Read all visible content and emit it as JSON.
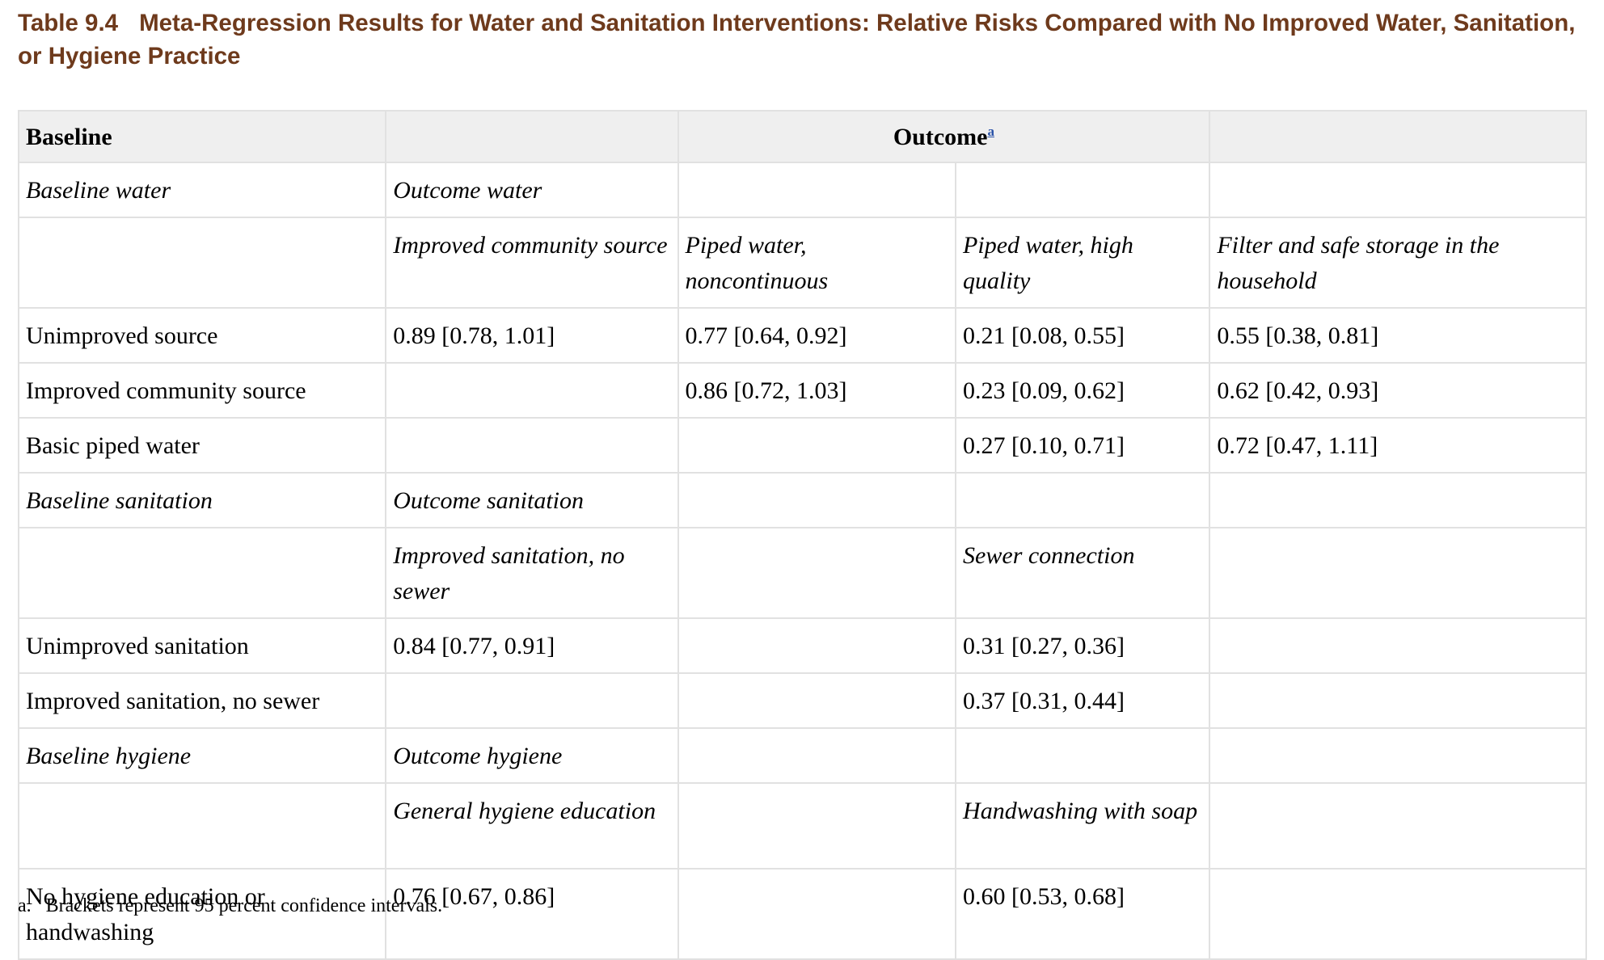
{
  "title": {
    "label": "Table 9.4",
    "text": "Meta-Regression Results for Water and Sanitation Interventions: Relative Risks Compared with No Improved Water, Sanitation, or Hygiene Practice"
  },
  "header": {
    "baseline": "Baseline",
    "outcome": "Outcome",
    "outcome_footnote_mark": "a"
  },
  "rows": [
    {
      "cells": [
        "Baseline water",
        "Outcome water",
        "",
        "",
        ""
      ],
      "italic": true
    },
    {
      "cells": [
        "",
        "Improved community source",
        "Piped water, noncontinuous",
        "Piped water, high quality",
        "Filter and safe storage in the household"
      ],
      "italic": true
    },
    {
      "cells": [
        "Unimproved source",
        "0.89 [0.78, 1.01]",
        "0.77 [0.64, 0.92]",
        "0.21 [0.08, 0.55]",
        "0.55 [0.38, 0.81]"
      ],
      "italic": false
    },
    {
      "cells": [
        "Improved community source",
        "",
        "0.86 [0.72, 1.03]",
        "0.23 [0.09, 0.62]",
        "0.62 [0.42, 0.93]"
      ],
      "italic": false
    },
    {
      "cells": [
        "Basic piped water",
        "",
        "",
        "0.27 [0.10, 0.71]",
        "0.72 [0.47, 1.11]"
      ],
      "italic": false
    },
    {
      "cells": [
        "Baseline sanitation",
        "Outcome sanitation",
        "",
        "",
        ""
      ],
      "italic": true
    },
    {
      "cells": [
        "",
        "Improved sanitation, no sewer",
        "",
        "Sewer connection",
        ""
      ],
      "italic": true
    },
    {
      "cells": [
        "Unimproved sanitation",
        "0.84 [0.77, 0.91]",
        "",
        "0.31 [0.27, 0.36]",
        ""
      ],
      "italic": false
    },
    {
      "cells": [
        "Improved sanitation, no sewer",
        "",
        "",
        "0.37 [0.31, 0.44]",
        ""
      ],
      "italic": false
    },
    {
      "cells": [
        "Baseline hygiene",
        "Outcome hygiene",
        "",
        "",
        ""
      ],
      "italic": true
    },
    {
      "cells": [
        "",
        "General hygiene education",
        "",
        "Handwashing with soap",
        ""
      ],
      "italic": true
    },
    {
      "cells": [
        "No hygiene education or handwashing",
        "0.76 [0.67, 0.86]",
        "",
        "0.60 [0.53, 0.68]",
        ""
      ],
      "italic": false
    }
  ],
  "footnote": {
    "mark": "a.",
    "text": "Brackets represent 95 percent confidence intervals."
  }
}
